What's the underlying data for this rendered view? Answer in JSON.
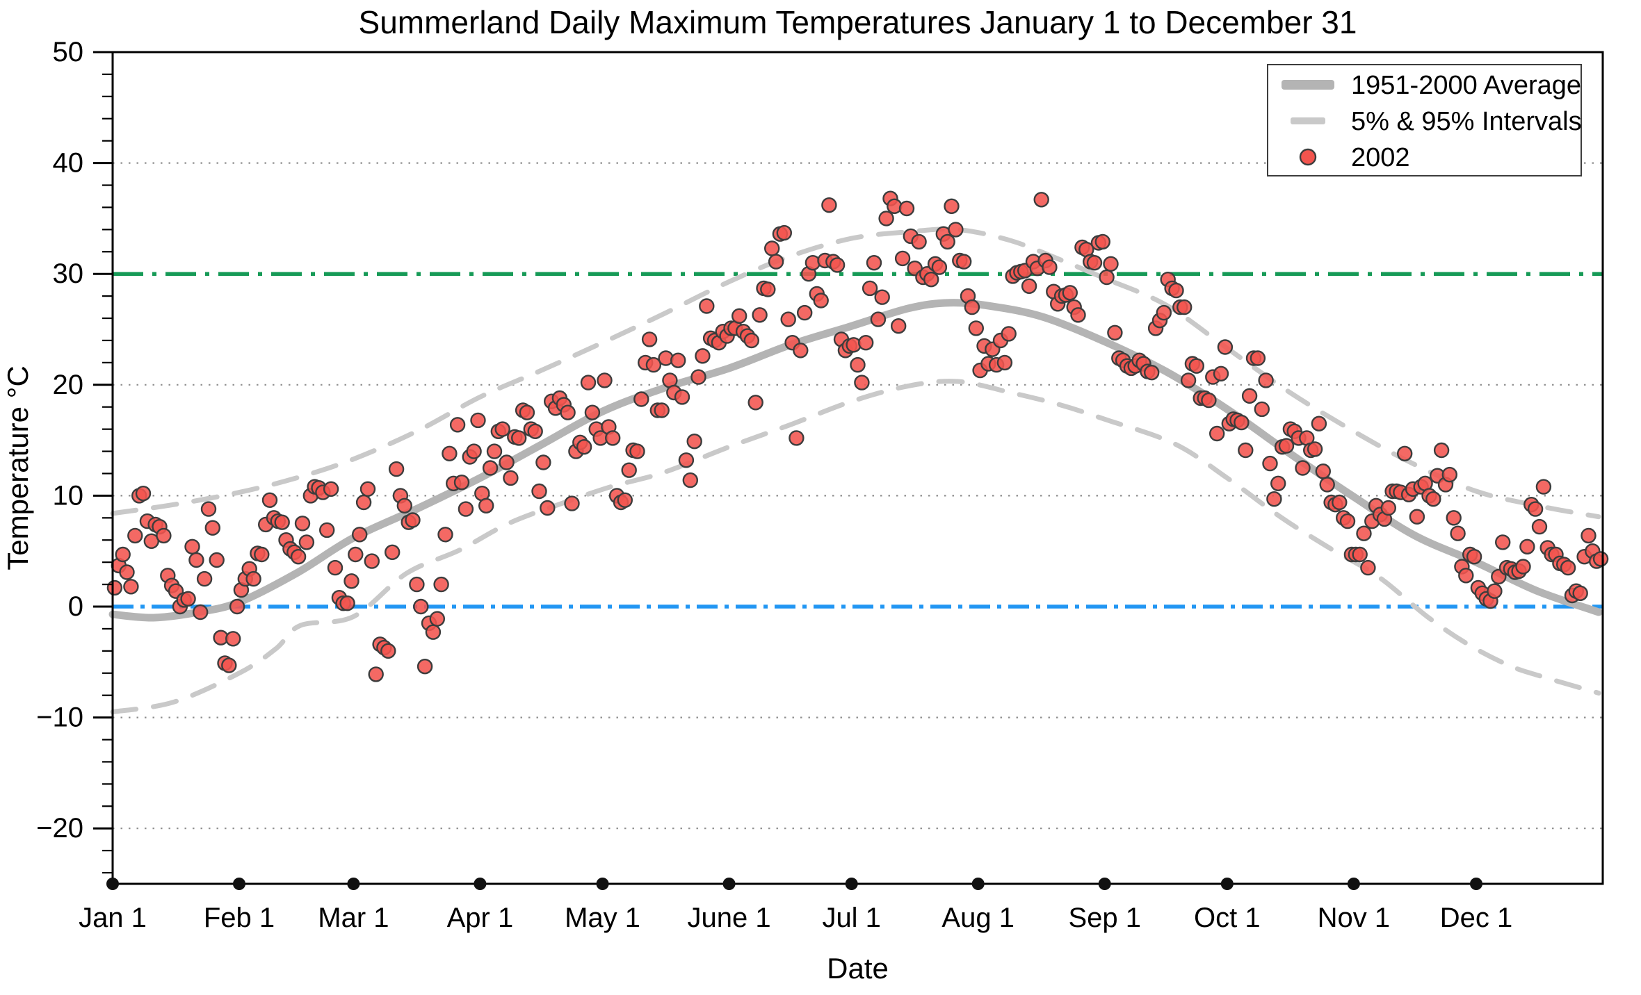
{
  "title": "Summerland Daily Maximum Temperatures January 1 to December 31",
  "axes": {
    "x_label": "Date",
    "y_label": "Temperature °C"
  },
  "legend": {
    "items": [
      {
        "swatch": "thick-line",
        "label": "1951-2000 Average"
      },
      {
        "swatch": "dash",
        "label": "5% & 95% Intervals"
      },
      {
        "swatch": "dot",
        "label": "2002"
      }
    ]
  },
  "colors": {
    "average_line": "#b4b4b4",
    "interval_line": "#c9c9c9",
    "scatter_fill": "#f2544e",
    "scatter_edge": "#3d3d3d",
    "green_line": "#169a56",
    "blue_line": "#2196f3",
    "grid": "#8f8f8f",
    "axis": "#000000",
    "text": "#000000"
  },
  "chart_data": {
    "type": "scatter",
    "title": "Summerland Daily Maximum Temperatures January 1 to December 31",
    "xlabel": "Date",
    "ylabel": "Temperature °C",
    "ylim": [
      -25,
      50
    ],
    "x_max_days": 365,
    "grid": "dotted horizontal at 40,20,10,-10,-20",
    "legend_position": "upper right",
    "y_major_ticks": [
      {
        "value": 50,
        "label": "50"
      },
      {
        "value": 40,
        "label": "40"
      },
      {
        "value": 30,
        "label": "30"
      },
      {
        "value": 20,
        "label": "20"
      },
      {
        "value": 10,
        "label": "10"
      },
      {
        "value": 0,
        "label": "0"
      },
      {
        "value": -10,
        "label": "−10"
      },
      {
        "value": -20,
        "label": "−20"
      }
    ],
    "y_minor_step": 2,
    "gridline_values": [
      40,
      20,
      10,
      -10,
      -20
    ],
    "x_ticks": [
      {
        "day": 0,
        "label": "Jan 1"
      },
      {
        "day": 31,
        "label": "Feb 1"
      },
      {
        "day": 59,
        "label": "Mar 1"
      },
      {
        "day": 90,
        "label": "Apr 1"
      },
      {
        "day": 120,
        "label": "May 1"
      },
      {
        "day": 151,
        "label": "June 1"
      },
      {
        "day": 181,
        "label": "Jul 1"
      },
      {
        "day": 212,
        "label": "Aug 1"
      },
      {
        "day": 243,
        "label": "Sep 1"
      },
      {
        "day": 273,
        "label": "Oct 1"
      },
      {
        "day": 304,
        "label": "Nov 1"
      },
      {
        "day": 334,
        "label": "Dec 1"
      }
    ],
    "reference_lines": [
      {
        "value": 30,
        "color": "#169a56",
        "style": "dashdot",
        "name": "30C-threshold"
      },
      {
        "value": 0,
        "color": "#2196f3",
        "style": "dashdot",
        "name": "0C-freezing"
      }
    ],
    "series": [
      {
        "name": "1951-2000 Average",
        "type": "line",
        "style": "solid-thick",
        "points": [
          [
            0,
            -0.7
          ],
          [
            10,
            -1.0
          ],
          [
            21,
            -0.5
          ],
          [
            31,
            0.4
          ],
          [
            45,
            3.0
          ],
          [
            59,
            6.2
          ],
          [
            75,
            8.9
          ],
          [
            90,
            11.6
          ],
          [
            105,
            14.6
          ],
          [
            120,
            17.6
          ],
          [
            135,
            19.7
          ],
          [
            151,
            21.5
          ],
          [
            166,
            23.6
          ],
          [
            181,
            25.3
          ],
          [
            195,
            26.9
          ],
          [
            205,
            27.4
          ],
          [
            215,
            27.1
          ],
          [
            228,
            26.1
          ],
          [
            243,
            23.9
          ],
          [
            258,
            21.2
          ],
          [
            273,
            17.8
          ],
          [
            288,
            13.9
          ],
          [
            304,
            9.9
          ],
          [
            319,
            6.4
          ],
          [
            334,
            4.0
          ],
          [
            349,
            1.4
          ],
          [
            364,
            -0.5
          ]
        ]
      },
      {
        "name": "95% Interval",
        "type": "line",
        "style": "dashed",
        "points": [
          [
            0,
            8.4
          ],
          [
            15,
            9.2
          ],
          [
            31,
            10.3
          ],
          [
            45,
            11.6
          ],
          [
            59,
            13.3
          ],
          [
            75,
            15.9
          ],
          [
            90,
            18.9
          ],
          [
            105,
            21.3
          ],
          [
            120,
            23.8
          ],
          [
            135,
            26.4
          ],
          [
            151,
            29.3
          ],
          [
            166,
            31.6
          ],
          [
            181,
            33.2
          ],
          [
            195,
            33.8
          ],
          [
            207,
            34.0
          ],
          [
            220,
            33.0
          ],
          [
            232,
            31.3
          ],
          [
            243,
            29.6
          ],
          [
            258,
            27.2
          ],
          [
            273,
            23.3
          ],
          [
            288,
            19.4
          ],
          [
            304,
            15.8
          ],
          [
            319,
            12.8
          ],
          [
            334,
            10.4
          ],
          [
            349,
            9.1
          ],
          [
            364,
            8.1
          ]
        ]
      },
      {
        "name": "5% Interval",
        "type": "line",
        "style": "dashed",
        "points": [
          [
            0,
            -9.5
          ],
          [
            15,
            -8.6
          ],
          [
            31,
            -6.0
          ],
          [
            40,
            -3.8
          ],
          [
            46,
            -1.7
          ],
          [
            59,
            -0.9
          ],
          [
            72,
            3.0
          ],
          [
            85,
            5.1
          ],
          [
            97,
            7.5
          ],
          [
            110,
            9.3
          ],
          [
            122,
            10.8
          ],
          [
            135,
            12.1
          ],
          [
            151,
            14.4
          ],
          [
            166,
            16.4
          ],
          [
            181,
            18.5
          ],
          [
            195,
            19.9
          ],
          [
            207,
            20.3
          ],
          [
            220,
            19.3
          ],
          [
            232,
            18.2
          ],
          [
            243,
            16.9
          ],
          [
            260,
            14.7
          ],
          [
            273,
            11.6
          ],
          [
            286,
            8.1
          ],
          [
            298,
            5.3
          ],
          [
            310,
            2.7
          ],
          [
            322,
            -0.9
          ],
          [
            332,
            -3.4
          ],
          [
            342,
            -5.3
          ],
          [
            350,
            -6.3
          ],
          [
            364,
            -7.8
          ]
        ]
      },
      {
        "name": "2002",
        "type": "scatter",
        "start_day": 0,
        "values": [
          1.7,
          3.7,
          4.7,
          3.1,
          1.8,
          6.4,
          10.0,
          10.2,
          7.7,
          5.9,
          7.4,
          7.2,
          6.4,
          2.8,
          1.9,
          1.4,
          0.0,
          0.6,
          0.7,
          5.4,
          4.2,
          -0.5,
          2.5,
          8.8,
          7.1,
          4.2,
          -2.8,
          -5.1,
          -5.3,
          -2.9,
          0.0,
          1.5,
          2.5,
          3.4,
          2.5,
          4.8,
          4.7,
          7.4,
          9.6,
          8.0,
          7.7,
          7.6,
          6.0,
          5.2,
          4.9,
          4.5,
          7.5,
          5.8,
          10.0,
          10.8,
          10.7,
          10.3,
          6.9,
          10.6,
          3.5,
          0.8,
          0.3,
          0.3,
          2.3,
          4.7,
          6.5,
          9.4,
          10.6,
          4.1,
          -6.1,
          -3.4,
          -3.7,
          -4.0,
          4.9,
          12.4,
          10.0,
          9.1,
          7.6,
          7.8,
          2.0,
          0.0,
          -5.4,
          -1.5,
          -2.3,
          -1.1,
          2.0,
          6.5,
          13.8,
          11.1,
          16.4,
          11.2,
          8.8,
          13.5,
          14.0,
          16.8,
          10.2,
          9.1,
          12.5,
          14.0,
          15.8,
          16.0,
          13.0,
          11.6,
          15.3,
          15.2,
          17.7,
          17.5,
          16.0,
          15.8,
          10.4,
          13.0,
          8.9,
          18.5,
          17.9,
          18.8,
          18.2,
          17.5,
          9.3,
          14.0,
          14.8,
          14.4,
          20.2,
          17.5,
          16.0,
          15.2,
          20.4,
          16.2,
          15.2,
          10.0,
          9.4,
          9.6,
          12.3,
          14.1,
          14.0,
          18.7,
          22.0,
          24.1,
          21.8,
          17.7,
          17.7,
          22.4,
          20.4,
          19.3,
          22.2,
          18.9,
          13.2,
          11.4,
          14.9,
          20.7,
          22.6,
          27.1,
          24.2,
          24.0,
          23.8,
          24.8,
          24.4,
          25.1,
          25.1,
          26.2,
          24.8,
          24.4,
          24.0,
          18.4,
          26.3,
          28.7,
          28.6,
          32.3,
          31.1,
          33.6,
          33.7,
          25.9,
          23.8,
          15.2,
          23.1,
          26.5,
          30.0,
          31.0,
          28.2,
          27.6,
          31.2,
          36.2,
          31.1,
          30.8,
          24.1,
          23.1,
          23.5,
          23.6,
          21.8,
          20.2,
          23.8,
          28.7,
          31.0,
          25.9,
          27.9,
          35.0,
          36.8,
          36.1,
          25.3,
          31.4,
          35.9,
          33.4,
          30.5,
          32.9,
          29.7,
          30.0,
          29.5,
          30.9,
          30.6,
          33.6,
          32.9,
          36.1,
          34.0,
          31.2,
          31.1,
          28.0,
          27.0,
          25.1,
          21.3,
          23.5,
          21.9,
          23.2,
          21.8,
          24.0,
          22.0,
          24.6,
          29.8,
          30.1,
          30.2,
          30.3,
          28.9,
          31.1,
          30.5,
          36.7,
          31.2,
          30.6,
          28.4,
          27.3,
          28.0,
          28.1,
          28.3,
          27.0,
          26.3,
          32.4,
          32.2,
          31.1,
          31.0,
          32.8,
          32.9,
          29.7,
          30.9,
          24.7,
          22.4,
          22.2,
          21.7,
          21.5,
          21.7,
          22.2,
          21.9,
          21.2,
          21.1,
          25.1,
          25.8,
          26.5,
          29.5,
          28.7,
          28.5,
          27.0,
          27.0,
          20.4,
          21.9,
          21.7,
          18.8,
          18.8,
          18.6,
          20.7,
          15.6,
          21.0,
          23.4,
          16.5,
          16.9,
          16.8,
          16.6,
          14.1,
          19.0,
          22.4,
          22.4,
          17.8,
          20.4,
          12.9,
          9.7,
          11.1,
          14.4,
          14.5,
          16.0,
          15.8,
          15.2,
          12.5,
          15.2,
          14.1,
          14.2,
          16.5,
          12.2,
          11.0,
          9.4,
          9.2,
          9.4,
          8.0,
          7.7,
          4.7,
          4.7,
          4.7,
          6.6,
          3.5,
          7.7,
          9.1,
          8.3,
          7.9,
          8.9,
          10.4,
          10.4,
          10.3,
          13.8,
          10.1,
          10.6,
          8.1,
          10.8,
          11.1,
          10.0,
          9.7,
          11.8,
          14.1,
          11.0,
          11.9,
          8.0,
          6.6,
          3.6,
          2.8,
          4.7,
          4.5,
          1.7,
          1.2,
          0.7,
          0.5,
          1.4,
          2.7,
          5.8,
          3.5,
          3.4,
          3.1,
          3.2,
          3.6,
          5.4,
          9.2,
          8.8,
          7.2,
          10.8,
          5.3,
          4.7,
          4.7,
          3.9,
          3.8,
          3.5,
          1.0,
          1.4,
          1.2,
          4.5,
          6.4,
          5.0,
          4.1,
          4.3
        ]
      }
    ]
  }
}
